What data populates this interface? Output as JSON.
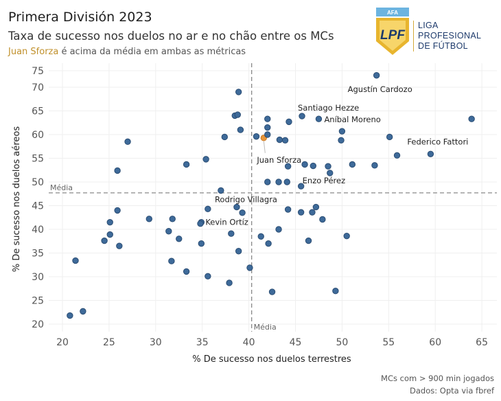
{
  "header": {
    "title": "Primera División 2023",
    "subtitle": "Taxa de sucesso nos duelos no ar e no chão entre os MCs",
    "tagline_highlight": "Juan Sforza",
    "tagline_rest": " é acima da média em ambas as métricas"
  },
  "logo": {
    "badge_top": "AFA",
    "badge_mark": "LPF",
    "lines": [
      "LIGA",
      "PROFESIONAL",
      "DE FÚTBOL"
    ]
  },
  "footer": {
    "note1": "MCs com > 900 min jogados",
    "note2": "Dados: Opta via fbref"
  },
  "colors": {
    "point": "#3e6a99",
    "point_stroke": "#2b4d73",
    "highlight": "#e8963a",
    "grid": "#efefef",
    "mean_line": "#888888"
  },
  "chart_data": {
    "type": "scatter",
    "title": "Taxa de sucesso nos duelos no ar e no chão entre os MCs",
    "xlabel": "% De sucesso nos duelos terrestres",
    "ylabel": "% De sucesso nos duelos aéreos",
    "xlim": [
      18.5,
      66.5
    ],
    "ylim": [
      18.5,
      75.5
    ],
    "xticks": [
      20,
      25,
      30,
      35,
      40,
      45,
      50,
      55,
      60,
      65
    ],
    "yticks": [
      20,
      25,
      30,
      35,
      40,
      45,
      50,
      55,
      60,
      65,
      70,
      75
    ],
    "grid": true,
    "mean_x": 40.3,
    "mean_y": 47.7,
    "mean_x_label": "Média",
    "mean_y_label": "Média",
    "points": [
      {
        "x": 53.7,
        "y": 72.5,
        "label": "Agustín Cardozo"
      },
      {
        "x": 45.7,
        "y": 63.9,
        "label": "Santiago Hezze"
      },
      {
        "x": 47.5,
        "y": 63.3,
        "label": "Aníbal Moreno"
      },
      {
        "x": 59.5,
        "y": 55.9,
        "label": "Federico Fattori"
      },
      {
        "x": 41.6,
        "y": 59.3,
        "label": "Juan Sforza",
        "highlight": true
      },
      {
        "x": 45.6,
        "y": 49.1,
        "label": "Enzo Pérez"
      },
      {
        "x": 38.7,
        "y": 44.7,
        "label": "Rodrigo Villagra"
      },
      {
        "x": 34.9,
        "y": 41.5,
        "label": "Kevin Ortíz"
      },
      {
        "x": 63.9,
        "y": 63.3
      },
      {
        "x": 55.1,
        "y": 59.5
      },
      {
        "x": 50.0,
        "y": 60.7
      },
      {
        "x": 49.9,
        "y": 58.8
      },
      {
        "x": 55.9,
        "y": 55.6
      },
      {
        "x": 53.5,
        "y": 53.5
      },
      {
        "x": 51.1,
        "y": 53.7
      },
      {
        "x": 48.5,
        "y": 53.3
      },
      {
        "x": 48.7,
        "y": 51.9
      },
      {
        "x": 46.9,
        "y": 53.4
      },
      {
        "x": 46.0,
        "y": 53.7
      },
      {
        "x": 44.2,
        "y": 53.3
      },
      {
        "x": 44.1,
        "y": 50.0
      },
      {
        "x": 43.2,
        "y": 50.0
      },
      {
        "x": 42.0,
        "y": 50.0
      },
      {
        "x": 42.0,
        "y": 63.3
      },
      {
        "x": 42.0,
        "y": 61.5
      },
      {
        "x": 42.0,
        "y": 60.0
      },
      {
        "x": 44.3,
        "y": 62.7
      },
      {
        "x": 43.3,
        "y": 58.9
      },
      {
        "x": 43.9,
        "y": 58.8
      },
      {
        "x": 40.8,
        "y": 59.6
      },
      {
        "x": 38.9,
        "y": 69.0
      },
      {
        "x": 38.5,
        "y": 64.0
      },
      {
        "x": 38.8,
        "y": 64.2
      },
      {
        "x": 39.1,
        "y": 61.0
      },
      {
        "x": 37.4,
        "y": 59.5
      },
      {
        "x": 35.4,
        "y": 54.8
      },
      {
        "x": 33.3,
        "y": 53.7
      },
      {
        "x": 27.0,
        "y": 58.5
      },
      {
        "x": 25.9,
        "y": 52.4
      },
      {
        "x": 37.0,
        "y": 48.2
      },
      {
        "x": 35.6,
        "y": 44.3
      },
      {
        "x": 39.3,
        "y": 43.5
      },
      {
        "x": 34.8,
        "y": 41.2
      },
      {
        "x": 31.8,
        "y": 42.2
      },
      {
        "x": 29.3,
        "y": 42.2
      },
      {
        "x": 25.9,
        "y": 44.0
      },
      {
        "x": 25.1,
        "y": 41.5
      },
      {
        "x": 25.1,
        "y": 38.9
      },
      {
        "x": 24.5,
        "y": 37.6
      },
      {
        "x": 26.1,
        "y": 36.5
      },
      {
        "x": 31.4,
        "y": 39.6
      },
      {
        "x": 32.5,
        "y": 38.0
      },
      {
        "x": 34.9,
        "y": 37.0
      },
      {
        "x": 38.1,
        "y": 39.1
      },
      {
        "x": 38.9,
        "y": 35.4
      },
      {
        "x": 41.3,
        "y": 38.5
      },
      {
        "x": 42.1,
        "y": 37.0
      },
      {
        "x": 43.2,
        "y": 40.0
      },
      {
        "x": 44.2,
        "y": 44.2
      },
      {
        "x": 45.6,
        "y": 43.6
      },
      {
        "x": 46.8,
        "y": 43.6
      },
      {
        "x": 47.2,
        "y": 44.7
      },
      {
        "x": 47.9,
        "y": 42.1
      },
      {
        "x": 46.4,
        "y": 37.6
      },
      {
        "x": 50.5,
        "y": 38.6
      },
      {
        "x": 21.4,
        "y": 33.4
      },
      {
        "x": 31.7,
        "y": 33.3
      },
      {
        "x": 33.3,
        "y": 31.1
      },
      {
        "x": 35.6,
        "y": 30.1
      },
      {
        "x": 37.9,
        "y": 28.7
      },
      {
        "x": 40.1,
        "y": 31.9
      },
      {
        "x": 42.5,
        "y": 26.8
      },
      {
        "x": 49.3,
        "y": 27.0
      },
      {
        "x": 20.8,
        "y": 21.8
      },
      {
        "x": 22.2,
        "y": 22.7
      }
    ]
  }
}
